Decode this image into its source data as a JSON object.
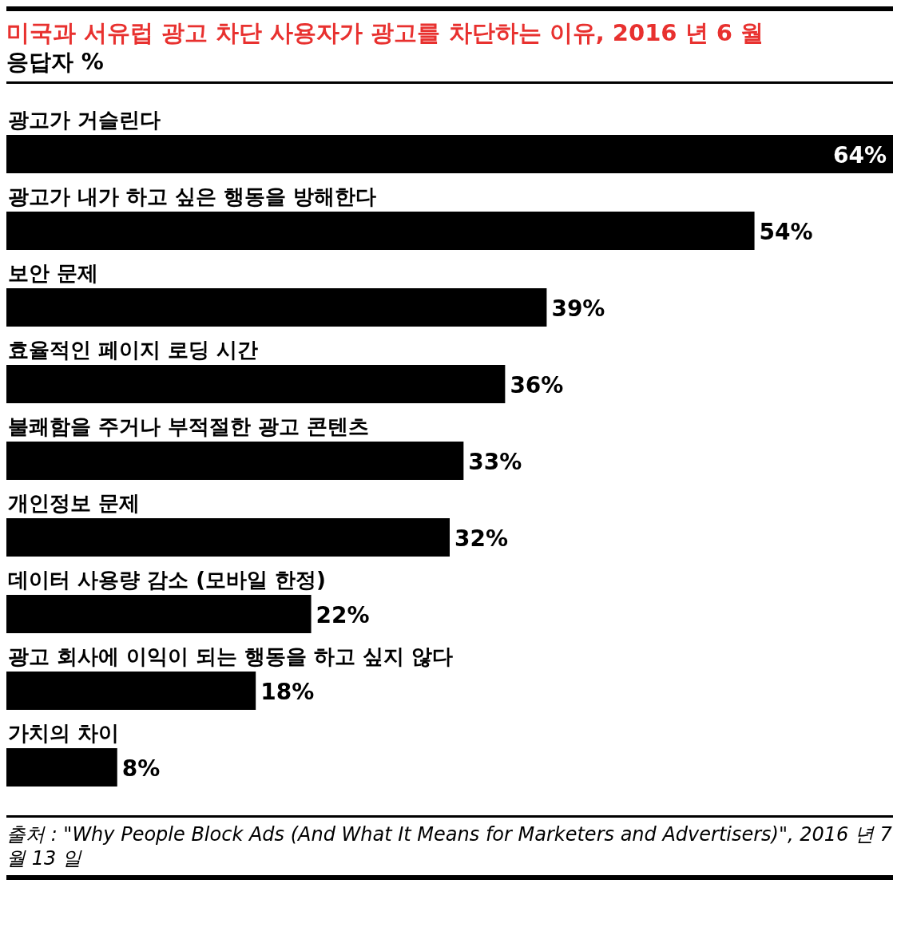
{
  "chart_data": {
    "type": "bar",
    "orientation": "horizontal",
    "title": "미국과 서유럽 광고 차단 사용자가 광고를 차단하는 이유, 2016 년 6 월",
    "subtitle": "응답자 %",
    "categories": [
      "광고가 거슬린다",
      "광고가 내가 하고 싶은 행동을 방해한다",
      "보안 문제",
      "효율적인 페이지 로딩 시간",
      "불쾌함을 주거나 부적절한 광고 콘텐츠",
      "개인정보 문제",
      "데이터 사용량 감소 (모바일 한정)",
      "광고 회사에 이익이 되는 행동을 하고 싶지 않다",
      "가치의 차이"
    ],
    "values": [
      64,
      54,
      39,
      36,
      33,
      32,
      22,
      18,
      8
    ],
    "value_labels": [
      "64%",
      "54%",
      "39%",
      "36%",
      "33%",
      "32%",
      "22%",
      "18%",
      "8%"
    ],
    "color": "#000000",
    "annotations": [
      "출처 : \"Why People Block Ads (And What It Means for Marketers and Advertisers)\", 2016 년 7 월 13 일"
    ]
  }
}
